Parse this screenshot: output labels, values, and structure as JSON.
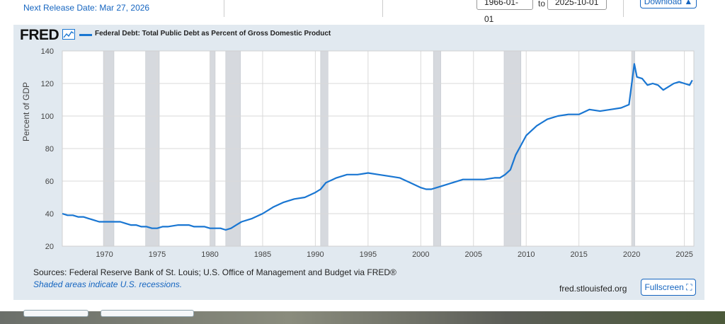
{
  "header": {
    "next_release": "Next Release Date: Mar 27, 2026",
    "date_start": "1966-01-01",
    "date_to": "to",
    "date_end": "2025-10-01",
    "download_label": "Download"
  },
  "chart_header": {
    "logo": "FRED",
    "legend_label": "Federal Debt: Total Public Debt as Percent of Gross Domestic Product"
  },
  "footer": {
    "sources": "Sources: Federal Reserve Bank of St. Louis; U.S. Office of Management and Budget via FRED®",
    "note": "Shaded areas indicate U.S. recessions.",
    "site": "fred.stlouisfed.org",
    "fullscreen_label": "Fullscreen"
  },
  "colors": {
    "line": "#1976d2",
    "panel": "#e1e9f0",
    "recession": "#d6d9de",
    "grid": "#d9d9d9",
    "link": "#1565c0"
  },
  "icons": {
    "logo_graph": "line-graph-icon",
    "fullscreen": "fullscreen-icon",
    "download": "download-icon"
  },
  "chart_data": {
    "type": "line",
    "title": "",
    "xlabel": "",
    "ylabel": "Percent of GDP",
    "xlim": [
      1966,
      2025.9
    ],
    "ylim": [
      20,
      140
    ],
    "x_ticks": [
      1970,
      1975,
      1980,
      1985,
      1990,
      1995,
      2000,
      2005,
      2010,
      2015,
      2020,
      2025
    ],
    "y_ticks": [
      20,
      40,
      60,
      80,
      100,
      120,
      140
    ],
    "grid": true,
    "legend": "top-left",
    "recessions": [
      [
        1969.9,
        1970.9
      ],
      [
        1973.9,
        1975.2
      ],
      [
        1980.0,
        1980.5
      ],
      [
        1981.5,
        1982.9
      ],
      [
        1990.5,
        1991.2
      ],
      [
        2001.2,
        2001.9
      ],
      [
        2007.9,
        2009.5
      ],
      [
        2020.0,
        2020.3
      ]
    ],
    "series": [
      {
        "name": "Federal Debt: Total Public Debt as Percent of Gross Domestic Product",
        "x": [
          1966.0,
          1966.5,
          1967.0,
          1967.5,
          1968.0,
          1968.5,
          1969.0,
          1969.5,
          1970.0,
          1970.5,
          1971.0,
          1971.5,
          1972.0,
          1972.5,
          1973.0,
          1973.5,
          1974.0,
          1974.5,
          1975.0,
          1975.5,
          1976.0,
          1977.0,
          1978.0,
          1978.5,
          1979.0,
          1979.5,
          1980.0,
          1980.5,
          1981.0,
          1981.5,
          1982.0,
          1982.5,
          1983.0,
          1984.0,
          1985.0,
          1986.0,
          1987.0,
          1988.0,
          1989.0,
          1990.0,
          1990.5,
          1991.0,
          1992.0,
          1993.0,
          1994.0,
          1995.0,
          1996.0,
          1997.0,
          1998.0,
          1999.0,
          2000.0,
          2000.5,
          2001.0,
          2002.0,
          2003.0,
          2004.0,
          2005.0,
          2006.0,
          2007.0,
          2007.5,
          2008.0,
          2008.5,
          2009.0,
          2009.5,
          2010.0,
          2011.0,
          2012.0,
          2013.0,
          2014.0,
          2015.0,
          2016.0,
          2017.0,
          2018.0,
          2019.0,
          2019.75,
          2020.25,
          2020.5,
          2021.0,
          2021.5,
          2022.0,
          2022.5,
          2023.0,
          2023.5,
          2024.0,
          2024.5,
          2025.0,
          2025.5,
          2025.75
        ],
        "values": [
          40,
          39,
          39,
          38,
          38,
          37,
          36,
          35,
          35,
          35,
          35,
          35,
          34,
          33,
          33,
          32,
          32,
          31,
          31,
          32,
          32,
          33,
          33,
          32,
          32,
          32,
          31,
          31,
          31,
          30,
          31,
          33,
          35,
          37,
          40,
          44,
          47,
          49,
          50,
          53,
          55,
          59,
          62,
          64,
          64,
          65,
          64,
          63,
          62,
          59,
          56,
          55,
          55,
          57,
          59,
          61,
          61,
          61,
          62,
          62,
          64,
          67,
          76,
          82,
          88,
          94,
          98,
          100,
          101,
          101,
          104,
          103,
          104,
          105,
          107,
          132,
          124,
          123,
          119,
          120,
          119,
          116,
          118,
          120,
          121,
          120,
          119,
          122
        ]
      }
    ]
  }
}
